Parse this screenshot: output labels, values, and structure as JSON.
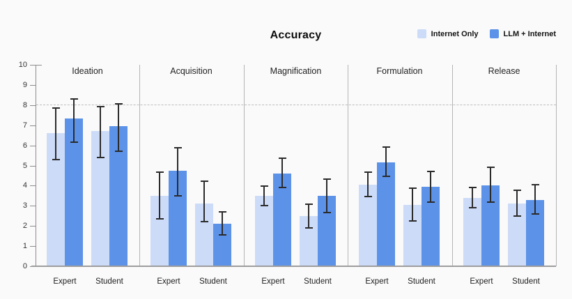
{
  "title": "Accuracy",
  "legend": [
    {
      "label": "Internet Only",
      "color": "#ccdbf8"
    },
    {
      "label": "LLM + Internet",
      "color": "#5c92e8"
    }
  ],
  "colors": {
    "internet_only_bar": "#ccdbf8",
    "llm_internet_bar": "#5c92e8",
    "error_bar": "#2b2b2b",
    "axis_line": "#8c8c8c",
    "panel_divider": "#b4b4b4",
    "reference_dash": "#bdbdbd",
    "baseline": "#9d9d9d",
    "background": "#fafafa"
  },
  "chart_data": {
    "type": "bar",
    "title": "Accuracy",
    "xlabel": "",
    "ylabel": "",
    "ylim": [
      0,
      10
    ],
    "yticks": [
      0,
      1,
      2,
      3,
      4,
      5,
      6,
      7,
      8,
      9,
      10
    ],
    "reference_line_y": 8,
    "grid": false,
    "legend_position": "top-right",
    "panels": [
      "Ideation",
      "Acquisition",
      "Magnification",
      "Formulation",
      "Release"
    ],
    "groups": [
      "Expert",
      "Student"
    ],
    "series": [
      "Internet Only",
      "LLM + Internet"
    ],
    "error_bars": true,
    "data": [
      {
        "panel": "Ideation",
        "bars": [
          {
            "group": "Expert",
            "series": "Internet Only",
            "mean": 6.6,
            "lo": 5.3,
            "hi": 7.9
          },
          {
            "group": "Expert",
            "series": "LLM + Internet",
            "mean": 7.35,
            "lo": 6.15,
            "hi": 8.35
          },
          {
            "group": "Student",
            "series": "Internet Only",
            "mean": 6.7,
            "lo": 5.4,
            "hi": 7.95
          },
          {
            "group": "Student",
            "series": "LLM + Internet",
            "mean": 6.95,
            "lo": 5.7,
            "hi": 8.1
          }
        ]
      },
      {
        "panel": "Acquisition",
        "bars": [
          {
            "group": "Expert",
            "series": "Internet Only",
            "mean": 3.5,
            "lo": 2.35,
            "hi": 4.7
          },
          {
            "group": "Expert",
            "series": "LLM + Internet",
            "mean": 4.75,
            "lo": 3.5,
            "hi": 5.9
          },
          {
            "group": "Student",
            "series": "Internet Only",
            "mean": 3.1,
            "lo": 2.2,
            "hi": 4.25
          },
          {
            "group": "Student",
            "series": "LLM + Internet",
            "mean": 2.1,
            "lo": 1.55,
            "hi": 2.75
          }
        ]
      },
      {
        "panel": "Magnification",
        "bars": [
          {
            "group": "Expert",
            "series": "Internet Only",
            "mean": 3.5,
            "lo": 3.0,
            "hi": 4.0
          },
          {
            "group": "Expert",
            "series": "LLM + Internet",
            "mean": 4.6,
            "lo": 3.9,
            "hi": 5.4
          },
          {
            "group": "Student",
            "series": "Internet Only",
            "mean": 2.5,
            "lo": 1.9,
            "hi": 3.1
          },
          {
            "group": "Student",
            "series": "LLM + Internet",
            "mean": 3.5,
            "lo": 2.65,
            "hi": 4.35
          }
        ]
      },
      {
        "panel": "Formulation",
        "bars": [
          {
            "group": "Expert",
            "series": "Internet Only",
            "mean": 4.05,
            "lo": 3.45,
            "hi": 4.7
          },
          {
            "group": "Expert",
            "series": "LLM + Internet",
            "mean": 5.15,
            "lo": 4.45,
            "hi": 5.95
          },
          {
            "group": "Student",
            "series": "Internet Only",
            "mean": 3.05,
            "lo": 2.25,
            "hi": 3.9
          },
          {
            "group": "Student",
            "series": "LLM + Internet",
            "mean": 3.95,
            "lo": 3.2,
            "hi": 4.75
          }
        ]
      },
      {
        "panel": "Release",
        "bars": [
          {
            "group": "Expert",
            "series": "Internet Only",
            "mean": 3.4,
            "lo": 2.9,
            "hi": 3.95
          },
          {
            "group": "Expert",
            "series": "LLM + Internet",
            "mean": 4.0,
            "lo": 3.2,
            "hi": 4.95
          },
          {
            "group": "Student",
            "series": "Internet Only",
            "mean": 3.1,
            "lo": 2.5,
            "hi": 3.8
          },
          {
            "group": "Student",
            "series": "LLM + Internet",
            "mean": 3.3,
            "lo": 2.6,
            "hi": 4.1
          }
        ]
      }
    ]
  }
}
